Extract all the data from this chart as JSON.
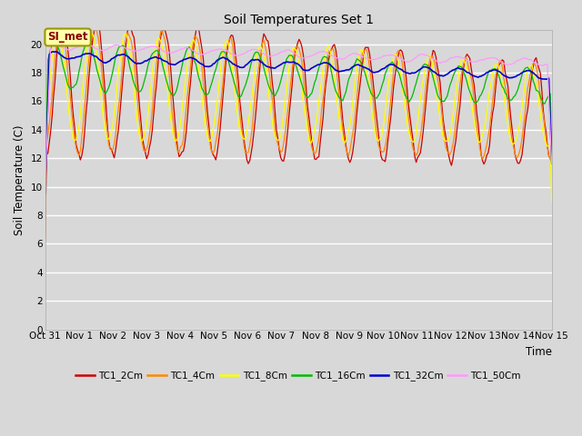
{
  "title": "Soil Temperatures Set 1",
  "xlabel": "Time",
  "ylabel": "Soil Temperature (C)",
  "ylim": [
    0,
    21
  ],
  "yticks": [
    0,
    2,
    4,
    6,
    8,
    10,
    12,
    14,
    16,
    18,
    20
  ],
  "background_color": "#d8d8d8",
  "plot_bg_color": "#d8d8d8",
  "grid_color": "#ffffff",
  "annotation_text": "SI_met",
  "annotation_bg": "#ffffaa",
  "annotation_border": "#999900",
  "annotation_text_color": "#880000",
  "series_colors": {
    "TC1_2Cm": "#cc0000",
    "TC1_4Cm": "#ff8800",
    "TC1_8Cm": "#ffff00",
    "TC1_16Cm": "#00bb00",
    "TC1_32Cm": "#0000cc",
    "TC1_50Cm": "#ff99ff"
  },
  "x_tick_labels": [
    "Oct 31",
    "Nov 1",
    "Nov 2",
    "Nov 3",
    "Nov 4",
    "Nov 5",
    "Nov 6",
    "Nov 7",
    "Nov 8",
    "Nov 9",
    "Nov 10",
    "Nov 11",
    "Nov 12",
    "Nov 13",
    "Nov 14",
    "Nov 15"
  ],
  "n_days": 15,
  "samples_per_day": 24
}
